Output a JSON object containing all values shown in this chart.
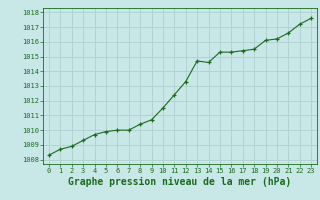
{
  "x": [
    0,
    1,
    2,
    3,
    4,
    5,
    6,
    7,
    8,
    9,
    10,
    11,
    12,
    13,
    14,
    15,
    16,
    17,
    18,
    19,
    20,
    21,
    22,
    23
  ],
  "y": [
    1008.3,
    1008.7,
    1008.9,
    1009.3,
    1009.7,
    1009.9,
    1010.0,
    1010.0,
    1010.4,
    1010.7,
    1011.5,
    1012.4,
    1013.3,
    1014.7,
    1014.6,
    1015.3,
    1015.3,
    1015.4,
    1015.5,
    1016.1,
    1016.2,
    1016.6,
    1017.2,
    1017.6
  ],
  "line_color": "#1a6b1a",
  "marker": "+",
  "bg_color": "#c8e8e8",
  "grid_color": "#b0d0d0",
  "xlabel": "Graphe pression niveau de la mer (hPa)",
  "xlabel_color": "#1a6b1a",
  "ylabel_ticks": [
    1008,
    1009,
    1010,
    1011,
    1012,
    1013,
    1014,
    1015,
    1016,
    1017,
    1018
  ],
  "xlim": [
    -0.5,
    23.5
  ],
  "ylim": [
    1007.7,
    1018.3
  ],
  "xticks": [
    0,
    1,
    2,
    3,
    4,
    5,
    6,
    7,
    8,
    9,
    10,
    11,
    12,
    13,
    14,
    15,
    16,
    17,
    18,
    19,
    20,
    21,
    22,
    23
  ],
  "tick_color": "#1a6b1a",
  "tick_fontsize": 5.0,
  "xlabel_fontsize": 7.0,
  "linewidth": 0.8,
  "markersize": 3.5
}
